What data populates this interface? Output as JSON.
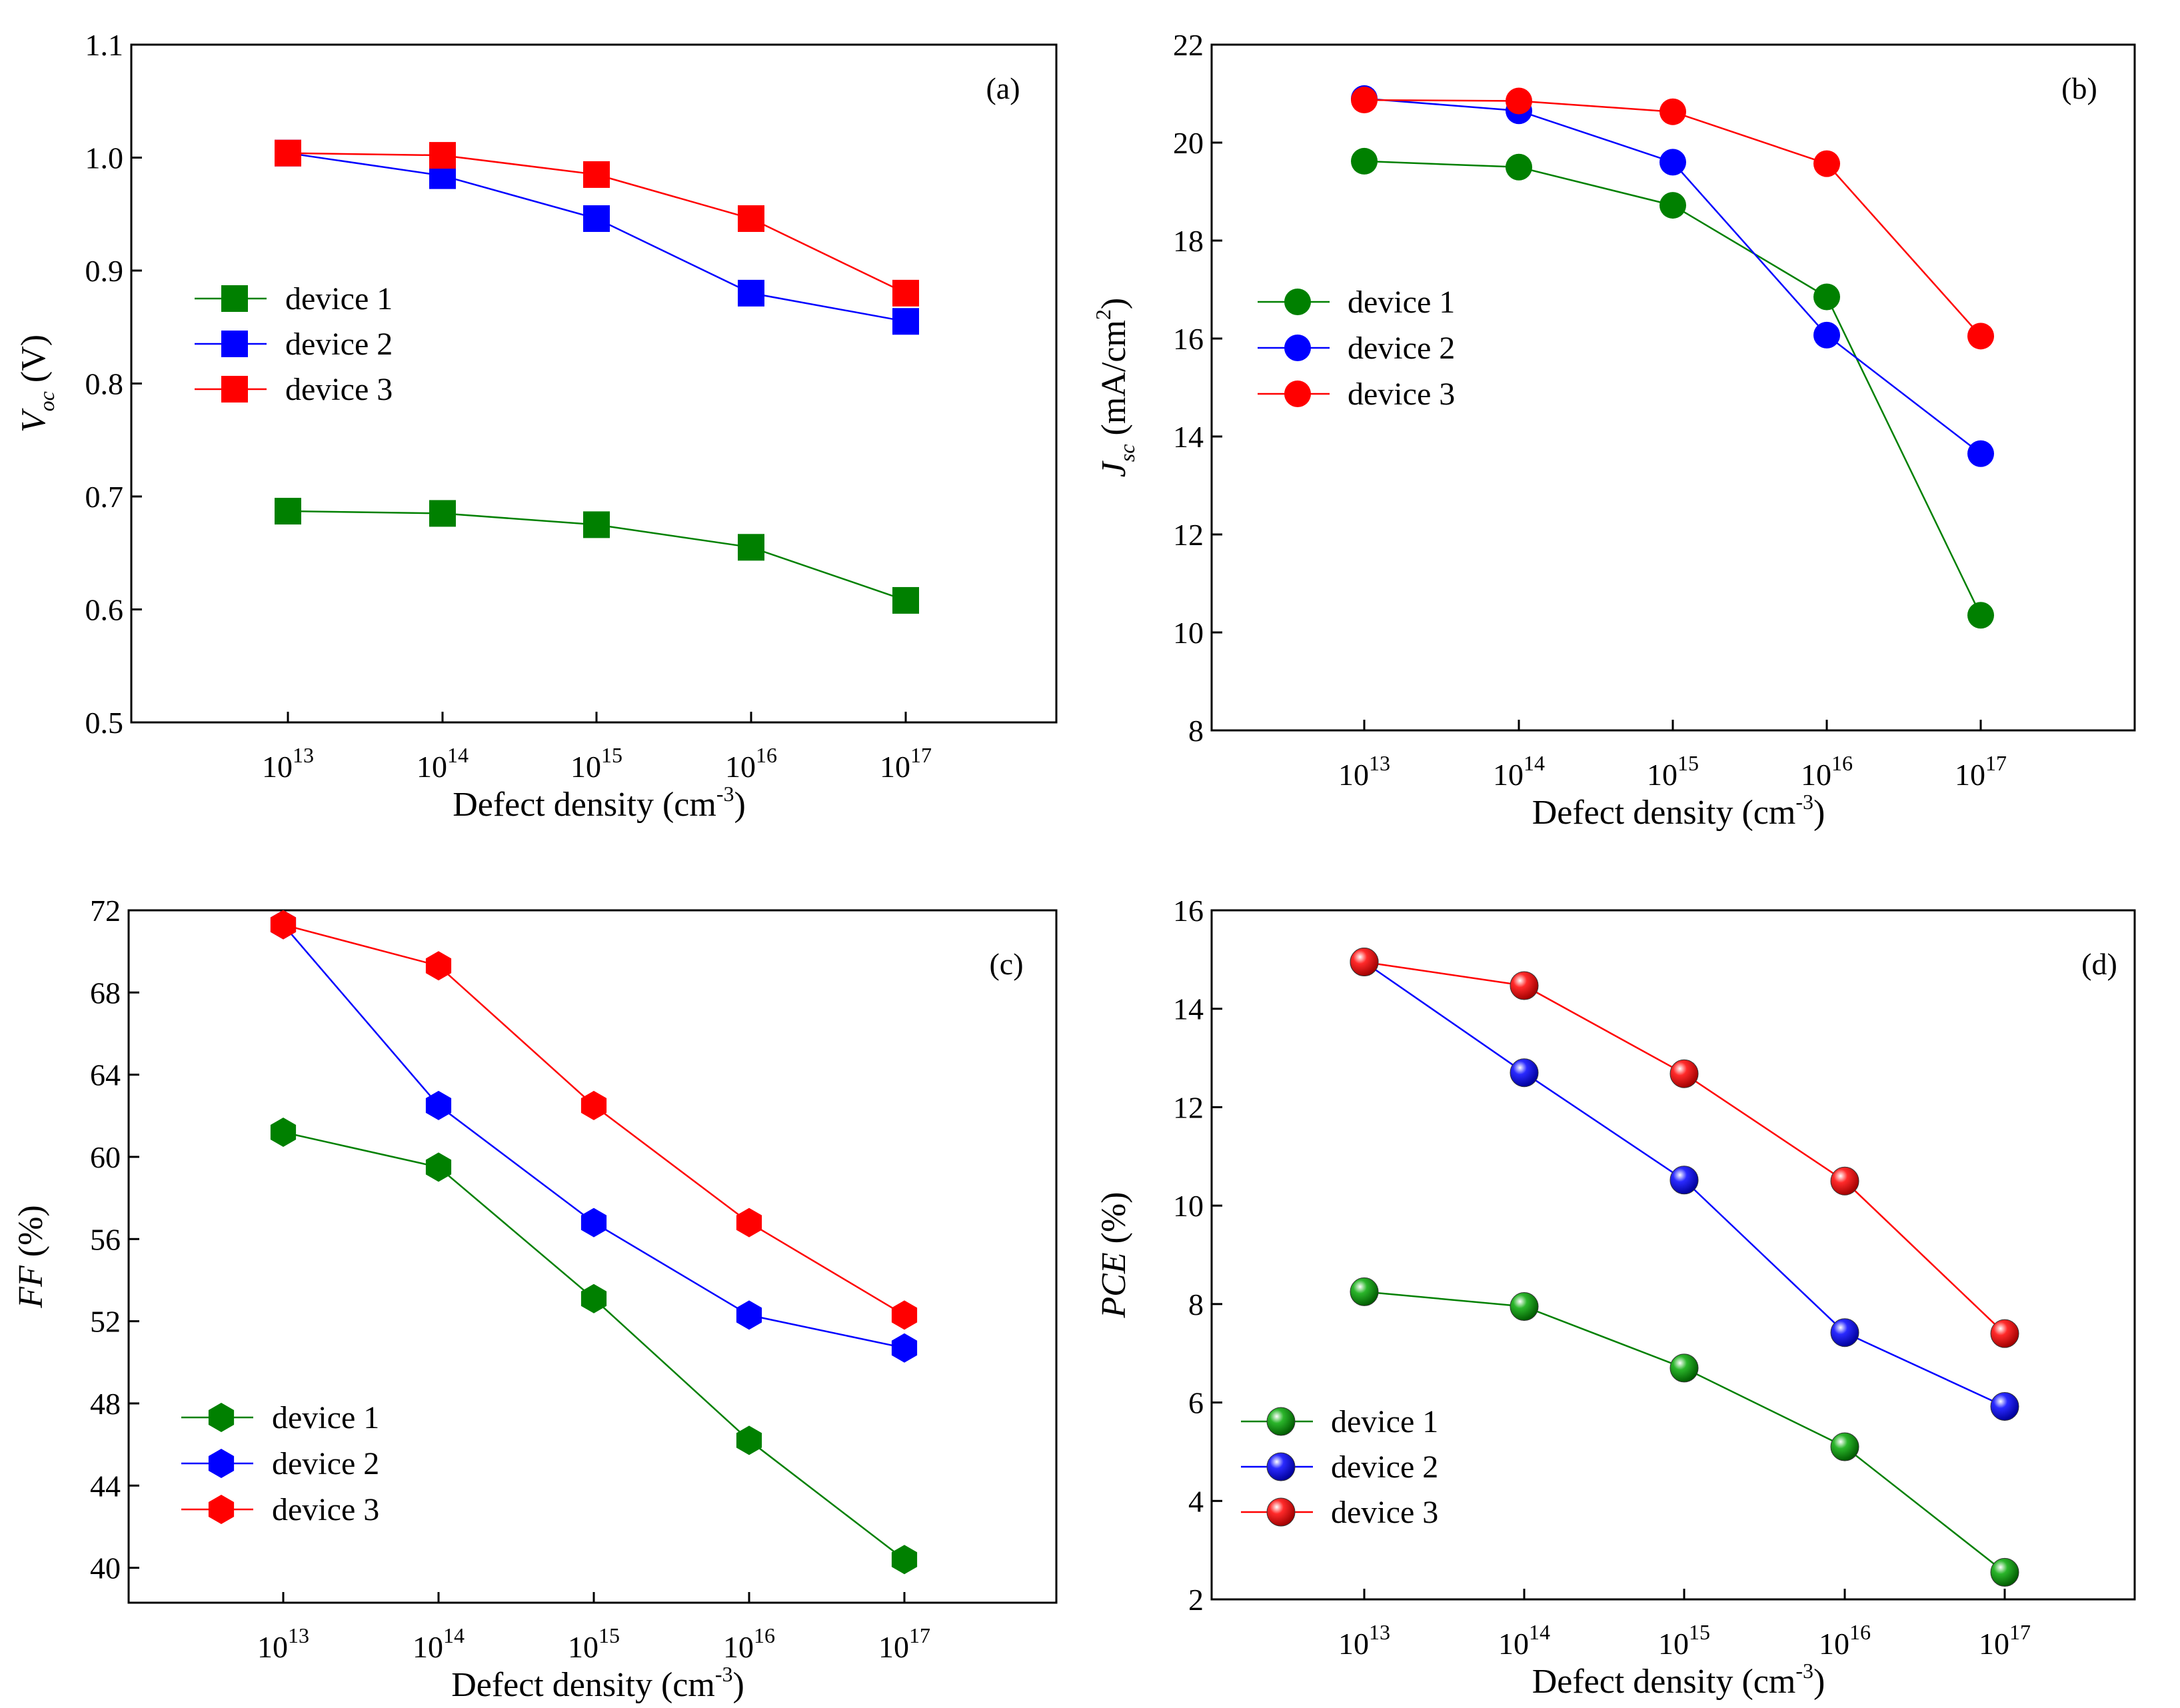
{
  "chart_data": [
    {
      "type": "line",
      "panel_label": "(a)",
      "marker": "square",
      "title": "",
      "xlabel": "Defect density (cm",
      "xlabel_sup": "-3",
      "xlabel_close": ")",
      "ylabel_italic": "V",
      "ylabel_sub": "oc",
      "ylabel_rest": " (V)",
      "ylabel_sup": "",
      "ylabel_tail": "",
      "ylim": [
        0.5,
        1.1
      ],
      "yticks": [
        "0.5",
        "0.6",
        "0.7",
        "0.8",
        "0.9",
        "1.0",
        "1.1"
      ],
      "xtick_base": "10",
      "x": [
        "13",
        "14",
        "15",
        "16",
        "17"
      ],
      "series": [
        {
          "name": "device 1",
          "color": "#008000",
          "values": [
            0.687,
            0.685,
            0.675,
            0.655,
            0.608
          ]
        },
        {
          "name": "device 2",
          "color": "#0000ff",
          "values": [
            1.004,
            0.984,
            0.946,
            0.88,
            0.855
          ]
        },
        {
          "name": "device 3",
          "color": "#ff0000",
          "values": [
            1.004,
            1.002,
            0.985,
            0.946,
            0.88
          ]
        }
      ]
    },
    {
      "type": "line",
      "panel_label": "(b)",
      "marker": "circle",
      "title": "",
      "xlabel": "Defect density (cm",
      "xlabel_sup": "-3",
      "xlabel_close": ")",
      "ylabel_italic": "J",
      "ylabel_sub": "sc",
      "ylabel_rest": " (mA/cm",
      "ylabel_sup": "2",
      "ylabel_tail": ")",
      "ylim": [
        8,
        22
      ],
      "yticks": [
        "8",
        "10",
        "12",
        "14",
        "16",
        "18",
        "20",
        "22"
      ],
      "xtick_base": "10",
      "x": [
        "13",
        "14",
        "15",
        "16",
        "17"
      ],
      "series": [
        {
          "name": "device 1",
          "color": "#008000",
          "values": [
            19.62,
            19.5,
            18.72,
            16.85,
            10.35
          ]
        },
        {
          "name": "device 2",
          "color": "#0000ff",
          "values": [
            20.9,
            20.65,
            19.6,
            16.07,
            13.65
          ]
        },
        {
          "name": "device 3",
          "color": "#ff0000",
          "values": [
            20.87,
            20.85,
            20.63,
            19.57,
            16.05
          ]
        }
      ]
    },
    {
      "type": "line",
      "panel_label": "(c)",
      "marker": "hexagon",
      "title": "",
      "xlabel": "Defect density (cm",
      "xlabel_sup": "-3",
      "xlabel_close": ")",
      "ylabel_italic": "FF",
      "ylabel_sub": "",
      "ylabel_rest": " (%)",
      "ylabel_sup": "",
      "ylabel_tail": "",
      "ylim": [
        38.3,
        72
      ],
      "yticks": [
        "40",
        "44",
        "48",
        "52",
        "56",
        "60",
        "64",
        "68",
        "72"
      ],
      "ytick_values": [
        40,
        44,
        48,
        52,
        56,
        60,
        64,
        68,
        72
      ],
      "xtick_base": "10",
      "x": [
        "13",
        "14",
        "15",
        "16",
        "17"
      ],
      "series": [
        {
          "name": "device 1",
          "color": "#008000",
          "values": [
            61.2,
            59.5,
            53.1,
            46.2,
            40.4
          ]
        },
        {
          "name": "device 2",
          "color": "#0000ff",
          "values": [
            71.3,
            62.5,
            56.8,
            52.3,
            50.7
          ]
        },
        {
          "name": "device 3",
          "color": "#ff0000",
          "values": [
            71.3,
            69.3,
            62.5,
            56.8,
            52.3
          ]
        }
      ]
    },
    {
      "type": "line",
      "panel_label": "(d)",
      "marker": "sphere",
      "title": "",
      "xlabel": "Defect density (cm",
      "xlabel_sup": "-3",
      "xlabel_close": ")",
      "ylabel_italic": "PCE",
      "ylabel_sub": "",
      "ylabel_rest": " (%)",
      "ylabel_sup": "",
      "ylabel_tail": "",
      "ylim": [
        2,
        16
      ],
      "yticks": [
        "2",
        "4",
        "6",
        "8",
        "10",
        "12",
        "14",
        "16"
      ],
      "xtick_base": "10",
      "x": [
        "13",
        "14",
        "15",
        "16",
        "17"
      ],
      "series": [
        {
          "name": "device 1",
          "color": "#008000",
          "values": [
            8.25,
            7.95,
            6.7,
            5.1,
            2.55
          ]
        },
        {
          "name": "device 2",
          "color": "#0000ff",
          "values": [
            14.95,
            12.7,
            10.52,
            7.42,
            5.92
          ]
        },
        {
          "name": "device 3",
          "color": "#ff0000",
          "values": [
            14.95,
            14.47,
            12.68,
            10.5,
            7.4
          ]
        }
      ]
    }
  ]
}
